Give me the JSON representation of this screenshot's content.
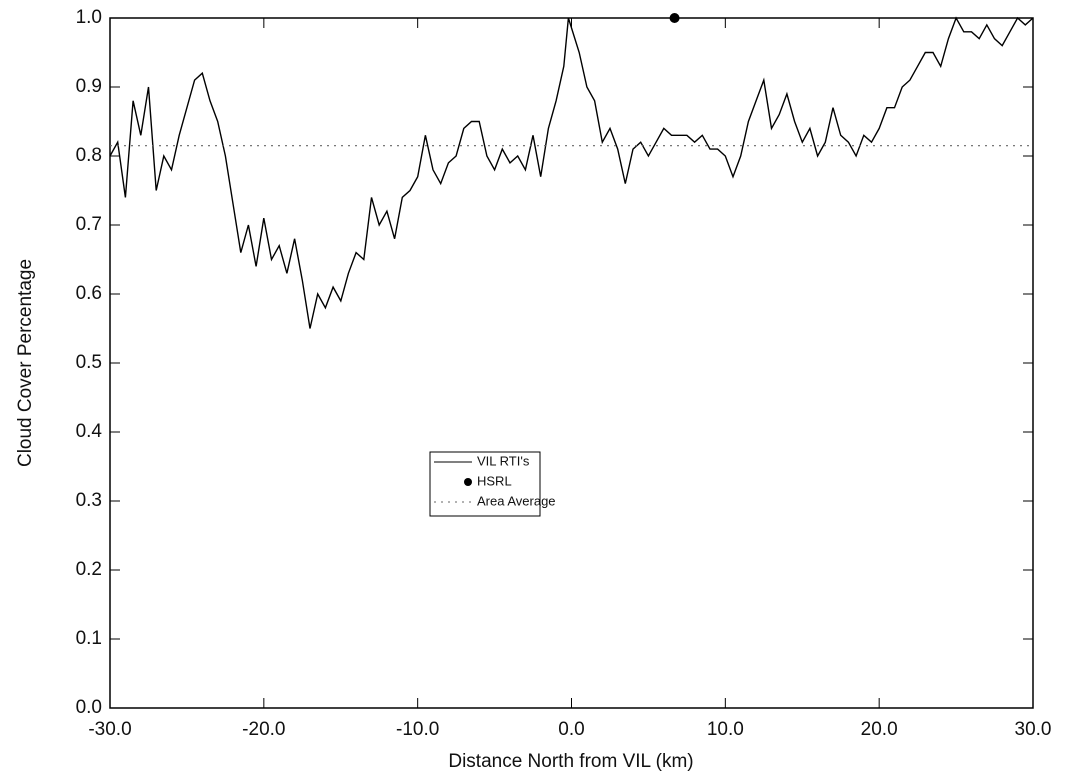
{
  "chart_data": {
    "type": "line",
    "xlabel": "Distance North from VIL (km)",
    "ylabel": "Cloud Cover Percentage",
    "xlim": [
      -30,
      30
    ],
    "ylim": [
      0,
      1
    ],
    "xticks": [
      {
        "value": -30,
        "label": "-30.0"
      },
      {
        "value": -20,
        "label": "-20.0"
      },
      {
        "value": -10,
        "label": "-10.0"
      },
      {
        "value": 0,
        "label": "0.0"
      },
      {
        "value": 10,
        "label": "10.0"
      },
      {
        "value": 20,
        "label": "20.0"
      },
      {
        "value": 30,
        "label": "30.0"
      }
    ],
    "yticks": [
      {
        "value": 0,
        "label": "0.0"
      },
      0.1,
      0.2,
      0.3,
      0.4,
      0.5,
      0.6,
      0.7,
      0.8,
      0.9,
      {
        "value": 1,
        "label": "1.0"
      }
    ],
    "legend": "center",
    "series": [
      {
        "name": "VIL RTI's",
        "color": "#000000",
        "style": "solid",
        "x": [
          -30,
          -29.5,
          -29,
          -28.5,
          -28,
          -27.5,
          -27,
          -26.5,
          -26,
          -25.5,
          -25,
          -24.5,
          -24,
          -23.5,
          -23,
          -22.5,
          -22,
          -21.5,
          -21,
          -20.5,
          -20,
          -19.5,
          -19,
          -18.5,
          -18,
          -17.5,
          -17,
          -16.5,
          -16,
          -15.5,
          -15,
          -14.5,
          -14,
          -13.5,
          -13,
          -12.5,
          -12,
          -11.5,
          -11,
          -10.5,
          -10,
          -9.5,
          -9,
          -8.5,
          -8,
          -7.5,
          -7,
          -6.5,
          -6,
          -5.5,
          -5,
          -4.5,
          -4,
          -3.5,
          -3,
          -2.5,
          -2,
          -1.5,
          -1,
          -0.5,
          -0.2,
          0.5,
          1,
          1.5,
          2,
          2.5,
          3,
          3.5,
          4,
          4.5,
          5,
          5.5,
          6,
          6.5,
          7,
          7.5,
          8,
          8.5,
          9,
          9.5,
          10,
          10.5,
          11,
          11.5,
          12,
          12.5,
          13,
          13.5,
          14,
          14.5,
          15,
          15.5,
          16,
          16.5,
          17,
          17.5,
          18,
          18.5,
          19,
          19.5,
          20,
          20.5,
          21,
          21.5,
          22,
          22.5,
          23,
          23.5,
          24,
          24.5,
          25,
          25.5,
          26,
          26.5,
          27,
          27.5,
          28,
          28.5,
          29,
          29.5,
          30
        ],
        "values": [
          0.8,
          0.82,
          0.74,
          0.88,
          0.83,
          0.9,
          0.75,
          0.8,
          0.78,
          0.83,
          0.87,
          0.91,
          0.92,
          0.88,
          0.85,
          0.8,
          0.73,
          0.66,
          0.7,
          0.64,
          0.71,
          0.65,
          0.67,
          0.63,
          0.68,
          0.62,
          0.55,
          0.6,
          0.58,
          0.61,
          0.59,
          0.63,
          0.66,
          0.65,
          0.74,
          0.7,
          0.72,
          0.68,
          0.74,
          0.75,
          0.77,
          0.83,
          0.78,
          0.76,
          0.79,
          0.8,
          0.84,
          0.85,
          0.85,
          0.8,
          0.78,
          0.81,
          0.79,
          0.8,
          0.78,
          0.83,
          0.77,
          0.84,
          0.88,
          0.93,
          1.0,
          0.95,
          0.9,
          0.88,
          0.82,
          0.84,
          0.81,
          0.76,
          0.81,
          0.82,
          0.8,
          0.82,
          0.84,
          0.83,
          0.83,
          0.83,
          0.82,
          0.83,
          0.81,
          0.81,
          0.8,
          0.77,
          0.8,
          0.85,
          0.88,
          0.91,
          0.84,
          0.86,
          0.89,
          0.85,
          0.82,
          0.84,
          0.8,
          0.82,
          0.87,
          0.83,
          0.82,
          0.8,
          0.83,
          0.82,
          0.84,
          0.87,
          0.87,
          0.9,
          0.91,
          0.93,
          0.95,
          0.95,
          0.93,
          0.97,
          1.0,
          0.98,
          0.98,
          0.97,
          0.99,
          0.97,
          0.96,
          0.98,
          1.0,
          0.99,
          1.0
        ]
      },
      {
        "name": "HSRL",
        "color": "#000000",
        "style": "marker",
        "x": [
          6.7
        ],
        "values": [
          1.0
        ]
      },
      {
        "name": "Area Average",
        "color": "#666666",
        "style": "dotted",
        "x": [
          -30,
          30
        ],
        "values": [
          0.815,
          0.815
        ]
      }
    ]
  }
}
